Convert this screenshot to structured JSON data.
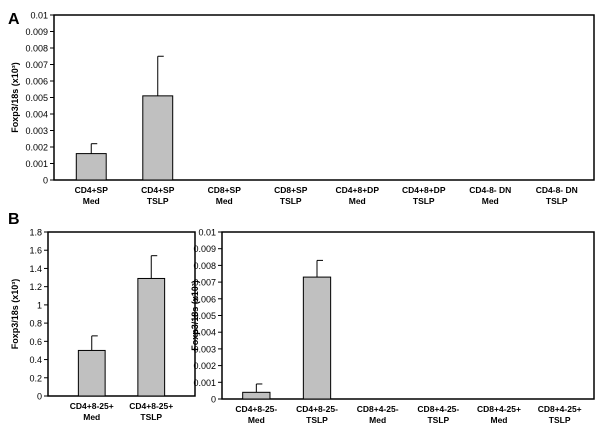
{
  "figure": {
    "panel_a_label": "A",
    "panel_b_label": "B"
  },
  "chart_data": [
    {
      "type": "bar",
      "panel": "A",
      "ylabel": "Foxp3/18s (x10³)",
      "ylim": [
        0,
        0.01
      ],
      "yticks": [
        "0",
        "0.001",
        "0.002",
        "0.003",
        "0.004",
        "0.005",
        "0.006",
        "0.007",
        "0.008",
        "0.009",
        "0.01"
      ],
      "categories": [
        [
          "CD4+SP",
          "Med"
        ],
        [
          "CD4+SP",
          "TSLP"
        ],
        [
          "CD8+SP",
          "Med"
        ],
        [
          "CD8+SP",
          "TSLP"
        ],
        [
          "CD4+8+DP",
          "Med"
        ],
        [
          "CD4+8+DP",
          "TSLP"
        ],
        [
          "CD4-8- DN",
          "Med"
        ],
        [
          "CD4-8- DN",
          "TSLP"
        ]
      ],
      "values": [
        0.0016,
        0.0051,
        0,
        0,
        0,
        0,
        0,
        0
      ],
      "errors": [
        0.0006,
        0.0024,
        0,
        0,
        0,
        0,
        0,
        0
      ],
      "bar_color": "#c0c0c0"
    },
    {
      "type": "bar",
      "panel": "B-left",
      "ylabel": "Foxp3/18s (x10³)",
      "ylim": [
        0,
        1.8
      ],
      "yticks": [
        "0",
        "0.2",
        "0.4",
        "0.6",
        "0.8",
        "1",
        "1.2",
        "1.4",
        "1.6",
        "1.8"
      ],
      "categories": [
        [
          "CD4+8-25+",
          "Med"
        ],
        [
          "CD4+8-25+",
          "TSLP"
        ]
      ],
      "values": [
        0.5,
        1.29
      ],
      "errors": [
        0.16,
        0.25
      ],
      "bar_color": "#c0c0c0"
    },
    {
      "type": "bar",
      "panel": "B-right",
      "ylabel": "Foxp3/18s (x10³)",
      "ylim": [
        0,
        0.01
      ],
      "yticks": [
        "0",
        "0.001",
        "0.002",
        "0.003",
        "0.004",
        "0.005",
        "0.006",
        "0.007",
        "0.008",
        "0.009",
        "0.01"
      ],
      "categories": [
        [
          "CD4+8-25-",
          "Med"
        ],
        [
          "CD4+8-25-",
          "TSLP"
        ],
        [
          "CD8+4-25-",
          "Med"
        ],
        [
          "CD8+4-25-",
          "TSLP"
        ],
        [
          "CD8+4-25+",
          "Med"
        ],
        [
          "CD8+4-25+",
          "TSLP"
        ]
      ],
      "values": [
        0.0004,
        0.0073,
        0,
        0,
        0,
        0
      ],
      "errors": [
        0.0005,
        0.001,
        0,
        0,
        0,
        0
      ],
      "bar_color": "#c0c0c0"
    }
  ]
}
